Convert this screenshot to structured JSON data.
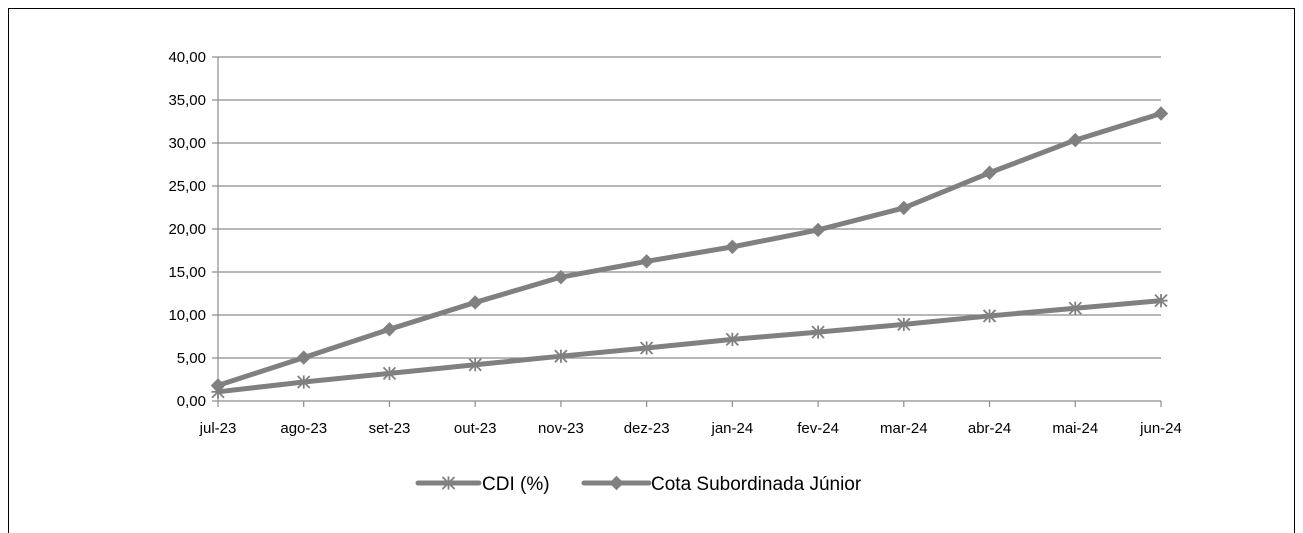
{
  "chart_data": {
    "type": "line",
    "title": "",
    "xlabel": "",
    "ylabel": "",
    "categories": [
      "jul-23",
      "ago-23",
      "set-23",
      "out-23",
      "nov-23",
      "dez-23",
      "jan-24",
      "fev-24",
      "mar-24",
      "abr-24",
      "mai-24",
      "jun-24"
    ],
    "ylim": [
      0,
      40
    ],
    "yticks": [
      "0,00",
      "5,00",
      "10,00",
      "15,00",
      "20,00",
      "25,00",
      "30,00",
      "35,00",
      "40,00"
    ],
    "grid": true,
    "legend_position": "bottom",
    "series": [
      {
        "name": "CDI (%)",
        "marker": "asterisk",
        "color": "#808080",
        "values": [
          1.07,
          2.21,
          3.21,
          4.22,
          5.21,
          6.16,
          7.17,
          8.01,
          8.91,
          9.89,
          10.79,
          11.67
        ]
      },
      {
        "name": "Cota Subordinada Júnior",
        "marker": "diamond",
        "color": "#808080",
        "values": [
          1.81,
          5.05,
          8.34,
          11.46,
          14.4,
          16.24,
          17.92,
          19.89,
          22.45,
          26.54,
          30.34,
          33.43
        ]
      }
    ]
  }
}
